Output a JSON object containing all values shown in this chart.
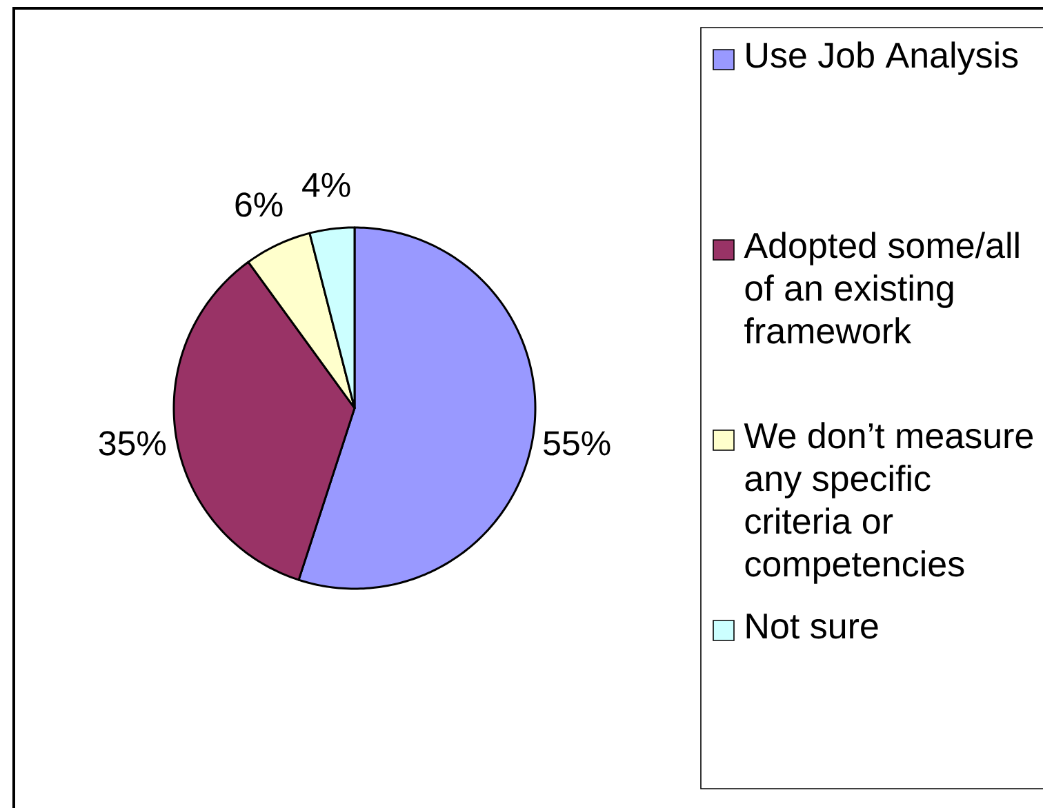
{
  "chart_data": {
    "type": "pie",
    "categories": [
      "Use Job Analysis",
      "Adopted some/all of an existing framework",
      "We don’t measure any specific criteria or competencies",
      "Not sure"
    ],
    "values": [
      55,
      35,
      6,
      4
    ],
    "colors": [
      "#9999ff",
      "#993366",
      "#ffffcc",
      "#ccffff"
    ],
    "value_labels": [
      "55%",
      "35%",
      "6%",
      "4%"
    ],
    "legend": "right"
  }
}
